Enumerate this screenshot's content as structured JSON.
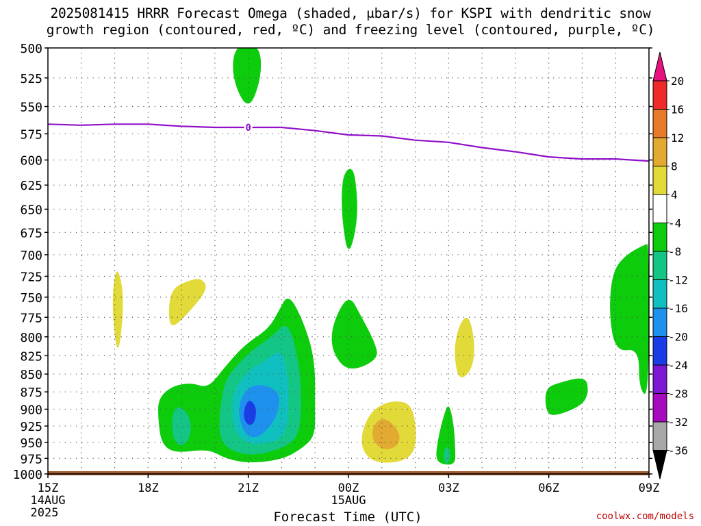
{
  "title_line1": "2025081415 HRRR Forecast Omega (shaded, μbar/s) for KSPI with dendritic snow",
  "title_line2": "growth region (contoured, red, ºC) and freezing level (contoured, purple, ºC)",
  "watermark": "coolwx.com/models",
  "chart_data": {
    "type": "filled-contour",
    "title": "2025081415 HRRR Forecast Omega (shaded, μbar/s) for KSPI with dendritic snow growth region (contoured, red, ºC) and freezing level (contoured, purple, ºC)",
    "xlabel": "Forecast Time (UTC)",
    "ylabel": "",
    "x_ticks": [
      {
        "hour": 0,
        "label": "15Z",
        "sub1": "14AUG",
        "sub2": "2025"
      },
      {
        "hour": 3,
        "label": "18Z",
        "sub1": "",
        "sub2": ""
      },
      {
        "hour": 6,
        "label": "21Z",
        "sub1": "",
        "sub2": ""
      },
      {
        "hour": 9,
        "label": "00Z",
        "sub1": "15AUG",
        "sub2": ""
      },
      {
        "hour": 12,
        "label": "03Z",
        "sub1": "",
        "sub2": ""
      },
      {
        "hour": 15,
        "label": "06Z",
        "sub1": "",
        "sub2": ""
      },
      {
        "hour": 18,
        "label": "09Z",
        "sub1": "",
        "sub2": ""
      }
    ],
    "xlim": [
      0,
      18
    ],
    "y_ticks": [
      500,
      525,
      550,
      575,
      600,
      625,
      650,
      675,
      700,
      725,
      750,
      775,
      800,
      825,
      850,
      875,
      900,
      925,
      950,
      975,
      1000
    ],
    "ylim": [
      500,
      1000
    ],
    "y_scale": "log-pressure",
    "grid": true,
    "colorbar": {
      "labels": [
        "20",
        "16",
        "12",
        "8",
        "4",
        "-4",
        "-8",
        "-12",
        "-16",
        "-20",
        "-24",
        "-28",
        "-32",
        "-36"
      ],
      "bins": [
        {
          "range": "20+",
          "color": "#e8127e"
        },
        {
          "range": "16 to 20",
          "color": "#ee2a2a"
        },
        {
          "range": "12 to 16",
          "color": "#e8782a"
        },
        {
          "range": "8 to 12",
          "color": "#e2aa30"
        },
        {
          "range": "4 to 8",
          "color": "#e2da38"
        },
        {
          "range": "-4 to 4",
          "color": "#ffffff"
        },
        {
          "range": "-8 to -4",
          "color": "#0ccc0c"
        },
        {
          "range": "-12 to -8",
          "color": "#14c686"
        },
        {
          "range": "-16 to -12",
          "color": "#10c0c0"
        },
        {
          "range": "-20 to -16",
          "color": "#1e90ee"
        },
        {
          "range": "-24 to -20",
          "color": "#1a3ce6"
        },
        {
          "range": "-28 to -24",
          "color": "#7c18d4"
        },
        {
          "range": "-32 to -28",
          "color": "#a60cbe"
        },
        {
          "range": "-36 to -32",
          "color": "#a8a8a8"
        },
        {
          "range": "< -36",
          "color": "#000000"
        }
      ]
    },
    "freezing_level": {
      "label": "0",
      "color": "#9010c8",
      "points": [
        [
          0,
          566
        ],
        [
          1,
          567
        ],
        [
          2,
          566
        ],
        [
          3,
          566
        ],
        [
          4,
          568
        ],
        [
          5,
          569
        ],
        [
          6,
          569
        ],
        [
          7,
          569
        ],
        [
          8,
          572
        ],
        [
          9,
          576
        ],
        [
          10,
          577
        ],
        [
          11,
          581
        ],
        [
          12,
          583
        ],
        [
          13,
          588
        ],
        [
          14,
          592
        ],
        [
          15,
          597
        ],
        [
          16,
          599
        ],
        [
          17,
          599
        ],
        [
          18,
          601
        ]
      ]
    },
    "ground_color": "#a05a2c",
    "omega_regions": [
      {
        "color": "#0ccc0c",
        "pts": [
          [
            5.6,
            497
          ],
          [
            6.35,
            497
          ],
          [
            6.4,
            525
          ],
          [
            6.0,
            555
          ],
          [
            5.5,
            525
          ]
        ]
      },
      {
        "color": "#0ccc0c",
        "pts": [
          [
            9.0,
            607
          ],
          [
            9.2,
            612
          ],
          [
            9.3,
            660
          ],
          [
            9.0,
            705
          ],
          [
            8.8,
            660
          ],
          [
            8.8,
            620
          ]
        ]
      },
      {
        "color": "#e2da38",
        "pts": [
          [
            2.05,
            708
          ],
          [
            2.3,
            750
          ],
          [
            2.1,
            835
          ],
          [
            1.9,
            760
          ]
        ]
      },
      {
        "color": "#e2da38",
        "pts": [
          [
            3.7,
            740
          ],
          [
            4.2,
            730
          ],
          [
            4.6,
            727
          ],
          [
            4.8,
            740
          ],
          [
            4.2,
            770
          ],
          [
            3.7,
            790
          ],
          [
            3.6,
            770
          ]
        ]
      },
      {
        "color": "#0ccc0c",
        "pts": [
          [
            17.9,
            688
          ],
          [
            18.0,
            688
          ],
          [
            18.0,
            885
          ],
          [
            17.7,
            870
          ],
          [
            17.7,
            815
          ],
          [
            17.0,
            820
          ],
          [
            16.8,
            770
          ],
          [
            16.9,
            720
          ],
          [
            17.3,
            700
          ]
        ]
      },
      {
        "color": "#0ccc0c",
        "pts": [
          [
            9.0,
            745
          ],
          [
            9.4,
            775
          ],
          [
            9.8,
            808
          ],
          [
            9.9,
            830
          ],
          [
            9.0,
            848
          ],
          [
            8.5,
            820
          ],
          [
            8.5,
            785
          ]
        ]
      },
      {
        "color": "#e2da38",
        "pts": [
          [
            12.6,
            770
          ],
          [
            12.8,
            810
          ],
          [
            12.7,
            845
          ],
          [
            12.3,
            860
          ],
          [
            12.15,
            820
          ],
          [
            12.3,
            785
          ]
        ]
      },
      {
        "color": "#0ccc0c",
        "pts": [
          [
            16.1,
            853
          ],
          [
            16.2,
            875
          ],
          [
            16.0,
            895
          ],
          [
            15.1,
            912
          ],
          [
            14.9,
            900
          ],
          [
            14.9,
            870
          ],
          [
            15.3,
            862
          ]
        ]
      },
      {
        "color": "#0ccc0c",
        "pts": [
          [
            7.2,
            745
          ],
          [
            7.65,
            780
          ],
          [
            8.0,
            830
          ],
          [
            8.0,
            900
          ],
          [
            8.0,
            940
          ],
          [
            7.6,
            960
          ],
          [
            7.0,
            977
          ],
          [
            6.0,
            983
          ],
          [
            5.3,
            975
          ],
          [
            4.8,
            960
          ],
          [
            3.8,
            967
          ],
          [
            3.4,
            952
          ],
          [
            3.3,
            915
          ],
          [
            3.3,
            885
          ],
          [
            3.7,
            867
          ],
          [
            4.3,
            862
          ],
          [
            4.8,
            870
          ],
          [
            5.3,
            840
          ],
          [
            5.9,
            810
          ],
          [
            6.6,
            790
          ],
          [
            6.9,
            768
          ]
        ]
      },
      {
        "color": "#14c686",
        "pts": [
          [
            3.85,
            893
          ],
          [
            4.25,
            908
          ],
          [
            4.3,
            940
          ],
          [
            4.0,
            958
          ],
          [
            3.75,
            945
          ],
          [
            3.7,
            915
          ]
        ]
      },
      {
        "color": "#14c686",
        "pts": [
          [
            7.2,
            778
          ],
          [
            7.55,
            840
          ],
          [
            7.6,
            900
          ],
          [
            7.5,
            940
          ],
          [
            7.1,
            958
          ],
          [
            6.1,
            972
          ],
          [
            5.35,
            960
          ],
          [
            5.1,
            935
          ],
          [
            5.2,
            880
          ],
          [
            5.4,
            850
          ],
          [
            6.1,
            818
          ],
          [
            6.7,
            800
          ]
        ]
      },
      {
        "color": "#10c0c0",
        "pts": [
          [
            7.0,
            815
          ],
          [
            7.2,
            855
          ],
          [
            7.2,
            920
          ],
          [
            7.0,
            945
          ],
          [
            6.5,
            952
          ],
          [
            6.0,
            952
          ],
          [
            5.6,
            935
          ],
          [
            5.5,
            900
          ],
          [
            5.6,
            870
          ],
          [
            6.0,
            845
          ],
          [
            6.5,
            832
          ]
        ]
      },
      {
        "color": "#1e90ee",
        "pts": [
          [
            6.2,
            862
          ],
          [
            6.95,
            873
          ],
          [
            6.9,
            905
          ],
          [
            6.6,
            930
          ],
          [
            6.2,
            945
          ],
          [
            5.85,
            935
          ],
          [
            5.7,
            905
          ],
          [
            5.8,
            880
          ]
        ]
      },
      {
        "color": "#1a3ce6",
        "pts": [
          [
            6.05,
            885
          ],
          [
            6.25,
            898
          ],
          [
            6.2,
            920
          ],
          [
            6.0,
            925
          ],
          [
            5.85,
            912
          ],
          [
            5.9,
            895
          ]
        ]
      },
      {
        "color": "#e2da38",
        "pts": [
          [
            10.4,
            887
          ],
          [
            10.9,
            893
          ],
          [
            11.05,
            935
          ],
          [
            10.95,
            970
          ],
          [
            10.4,
            983
          ],
          [
            9.7,
            980
          ],
          [
            9.4,
            960
          ],
          [
            9.4,
            935
          ],
          [
            9.6,
            910
          ],
          [
            9.9,
            895
          ]
        ]
      },
      {
        "color": "#e2aa30",
        "pts": [
          [
            10.15,
            913
          ],
          [
            10.55,
            935
          ],
          [
            10.5,
            955
          ],
          [
            10.1,
            963
          ],
          [
            9.75,
            950
          ],
          [
            9.7,
            932
          ],
          [
            9.85,
            917
          ]
        ]
      },
      {
        "color": "#0ccc0c",
        "pts": [
          [
            12.0,
            890
          ],
          [
            12.15,
            920
          ],
          [
            12.2,
            960
          ],
          [
            12.2,
            985
          ],
          [
            11.8,
            985
          ],
          [
            11.6,
            975
          ],
          [
            11.7,
            940
          ],
          [
            11.85,
            910
          ]
        ]
      },
      {
        "color": "#14c686",
        "pts": [
          [
            12.0,
            957
          ],
          [
            12.05,
            970
          ],
          [
            12.0,
            983
          ],
          [
            11.9,
            983
          ],
          [
            11.85,
            970
          ],
          [
            11.9,
            958
          ]
        ]
      }
    ]
  }
}
